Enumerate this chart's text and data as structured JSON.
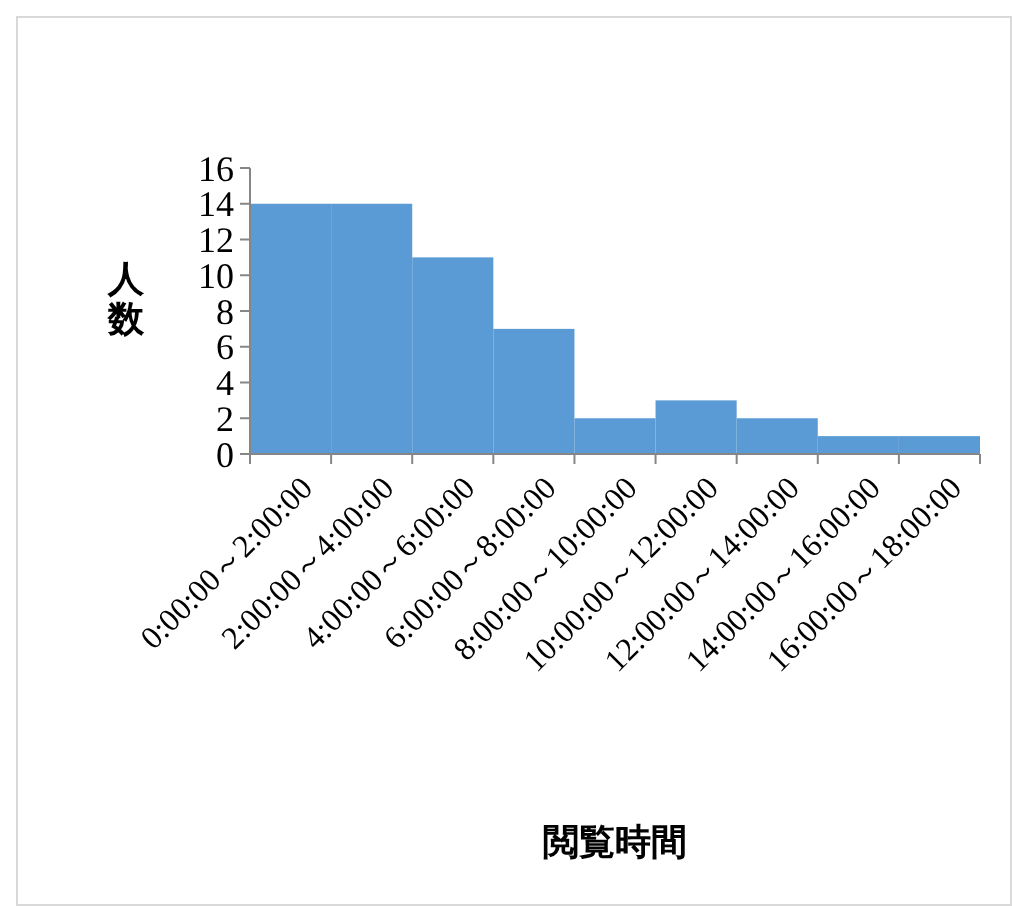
{
  "chart_data": {
    "type": "bar",
    "xlabel": "閲覧時間",
    "ylabel": "人数",
    "categories": [
      "0:00:00～2:00:00",
      "2:00:00～4:00:00",
      "4:00:00～6:00:00",
      "6:00:00～8:00:00",
      "8:00:00～10:00:00",
      "10:00:00～12:00:00",
      "12:00:00～14:00:00",
      "14:00:00～16:00:00",
      "16:00:00～18:00:00"
    ],
    "values": [
      14,
      14,
      11,
      7,
      2,
      3,
      2,
      1,
      1
    ],
    "color": "#5b9bd5",
    "ylim": [
      0,
      16
    ],
    "yticks": [
      0,
      2,
      4,
      6,
      8,
      10,
      12,
      14,
      16
    ]
  }
}
